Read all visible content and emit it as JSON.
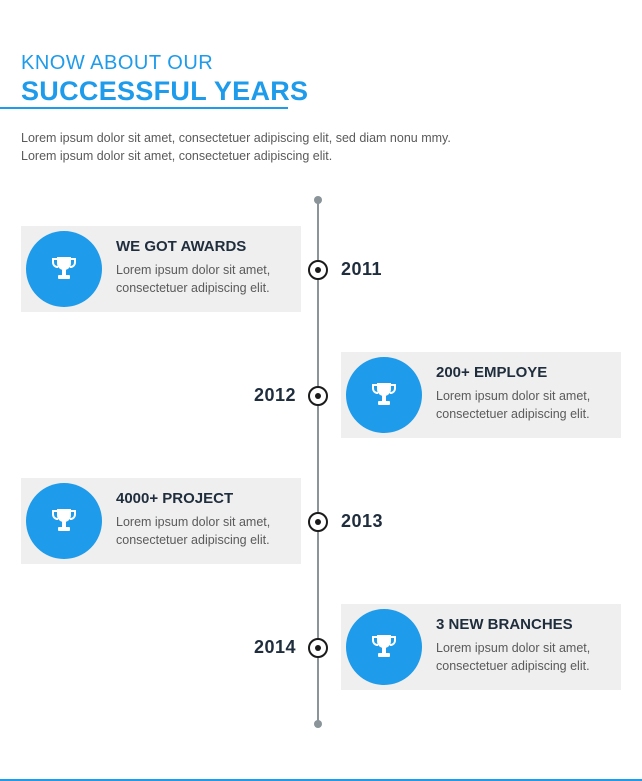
{
  "header": {
    "kicker": "KNOW ABOUT OUR",
    "title": "SUCCESSFUL YEARS",
    "intro": "Lorem ipsum dolor sit amet, consectetuer adipiscing elit, sed diam nonu mmy. Lorem ipsum dolor sit amet, consectetuer adipiscing elit."
  },
  "colors": {
    "accent": "#1e9bea",
    "heading": "#1f2d3d",
    "card_bg": "#efefef",
    "line": "#8a9499"
  },
  "timeline": [
    {
      "year": "2011",
      "title": "WE GOT AWARDS",
      "text": "Lorem ipsum dolor sit amet, consectetuer adipiscing elit.",
      "icon": "trophy-icon"
    },
    {
      "year": "2012",
      "title": "200+ EMPLOYE",
      "text": "Lorem ipsum dolor sit amet, consectetuer adipiscing elit.",
      "icon": "trophy-icon"
    },
    {
      "year": "2013",
      "title": "4000+ PROJECT",
      "text": "Lorem ipsum dolor sit amet, consectetuer adipiscing elit.",
      "icon": "trophy-icon"
    },
    {
      "year": "2014",
      "title": "3 NEW BRANCHES",
      "text": "Lorem ipsum dolor sit amet, consectetuer adipiscing elit.",
      "icon": "trophy-icon"
    }
  ]
}
